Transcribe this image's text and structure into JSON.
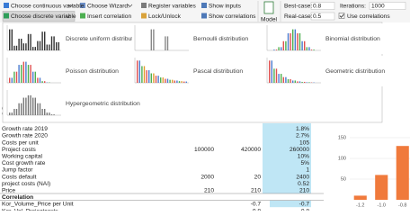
{
  "ribbon": {
    "choose_continuous": "Choose continuous variable",
    "choose_discrete": "Choose discrete variable",
    "choose_wizard": "Choose Wizard:",
    "insert_correlation": "Insert correlation",
    "register": "Register variables",
    "lock": "Lock/Unlock",
    "show_inputs": "Show inputs",
    "show_correlations": "Show correlations",
    "model": "Model",
    "best_case": {
      "label": "Best-case:",
      "value": 0.8
    },
    "real_case": {
      "label": "Real-case:",
      "value": 0.5
    },
    "iterations": {
      "label": "Iterations:",
      "value": 1000
    },
    "use_correlations": "Use correlations"
  },
  "menu": {
    "items": [
      "Discrete uniform distribution",
      "Bernoulli distribution",
      "Binomial distribution",
      "Poisson distribution",
      "Pascal distribution",
      "Geometric distribution",
      "Hypergeometric distribution"
    ]
  },
  "sheet": {
    "rows": [
      {
        "label": "C"
      },
      {
        "label": "V"
      },
      {
        "label": "Growth rate 2019",
        "g": "1.8%"
      },
      {
        "label": "Growth rate 2020",
        "g": "2.7%"
      },
      {
        "label": "Costs per unit",
        "g": 105
      },
      {
        "label": "Project costs",
        "e": 100000,
        "f": 420000,
        "g": 260000
      },
      {
        "label": "Working capital",
        "g": "10%"
      },
      {
        "label": "Cost growth rate",
        "g": "5%"
      },
      {
        "label": "Jump factor",
        "g": 1
      },
      {
        "label": "Costs default",
        "e": 2000,
        "f": 20,
        "g": 2400
      },
      {
        "label": "project costs (NAI)",
        "g": 0.52
      },
      {
        "label": "Price",
        "e": 210,
        "f": 210,
        "g": 210
      },
      {
        "label": "Correlation"
      },
      {
        "label": "Kor_Volume_Price per Unit",
        "f": -0.7,
        "g": -0.7
      },
      {
        "label": "Kor_Vol_Projectcosts",
        "f": -0.8,
        "g": -0.8
      }
    ]
  },
  "chart_data": {
    "type": "bar",
    "categories": [
      "-1.2",
      "-1.0",
      "-0.8"
    ],
    "values": [
      10,
      60,
      130
    ],
    "color": "#f07a3c",
    "ylim": [
      0,
      160
    ],
    "yticks": [
      50,
      100,
      150
    ],
    "grid": true
  }
}
